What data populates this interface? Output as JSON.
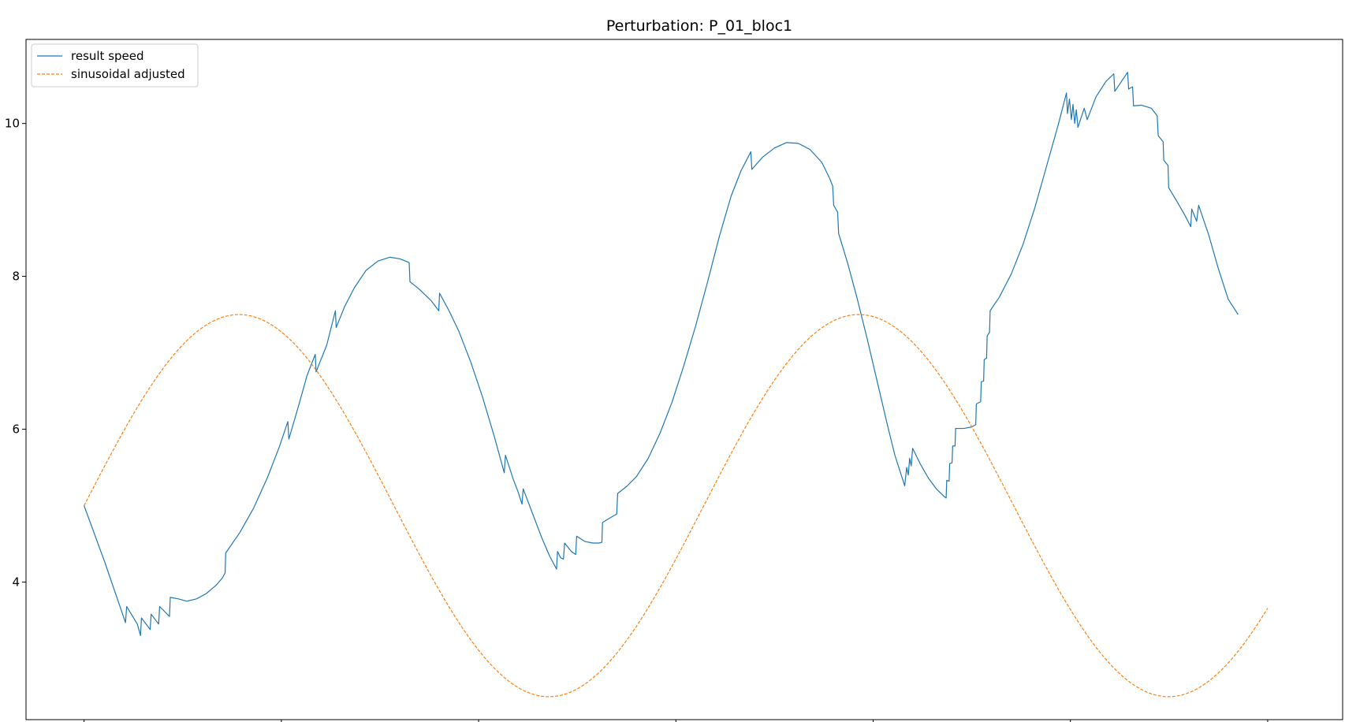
{
  "chart_data": {
    "type": "line",
    "title": "Perturbation: P_01_bloc1",
    "xlabel": "",
    "ylabel": "",
    "xlim": [
      -0.2943,
      6.3799
    ],
    "ylim": [
      2.2,
      11.1
    ],
    "xticks": [
      0,
      1,
      2,
      3,
      4,
      5,
      6
    ],
    "xtick_labels": [
      "",
      "",
      "",
      "",
      "",
      "",
      ""
    ],
    "yticks": [
      4,
      6,
      8,
      10
    ],
    "ytick_labels": [
      "4",
      "6",
      "8",
      "10"
    ],
    "grid": false,
    "legend_position": "top-left",
    "series": [
      {
        "name": "result speed",
        "color": "#1f77b4",
        "style": "solid",
        "points": [
          [
            0.0,
            5.0
          ],
          [
            0.105,
            4.26
          ],
          [
            0.21,
            3.47
          ],
          [
            0.216,
            3.68
          ],
          [
            0.27,
            3.45
          ],
          [
            0.286,
            3.3
          ],
          [
            0.291,
            3.53
          ],
          [
            0.335,
            3.38
          ],
          [
            0.34,
            3.58
          ],
          [
            0.378,
            3.45
          ],
          [
            0.383,
            3.68
          ],
          [
            0.433,
            3.55
          ],
          [
            0.437,
            3.8
          ],
          [
            0.478,
            3.78
          ],
          [
            0.52,
            3.75
          ],
          [
            0.57,
            3.78
          ],
          [
            0.62,
            3.85
          ],
          [
            0.67,
            3.96
          ],
          [
            0.7,
            4.05
          ],
          [
            0.715,
            4.12
          ],
          [
            0.718,
            4.38
          ],
          [
            0.79,
            4.65
          ],
          [
            0.86,
            4.97
          ],
          [
            0.93,
            5.37
          ],
          [
            0.99,
            5.77
          ],
          [
            1.033,
            6.1
          ],
          [
            1.038,
            5.87
          ],
          [
            1.09,
            6.33
          ],
          [
            1.13,
            6.7
          ],
          [
            1.172,
            6.98
          ],
          [
            1.176,
            6.75
          ],
          [
            1.23,
            7.1
          ],
          [
            1.274,
            7.55
          ],
          [
            1.278,
            7.33
          ],
          [
            1.32,
            7.6
          ],
          [
            1.37,
            7.85
          ],
          [
            1.43,
            8.08
          ],
          [
            1.49,
            8.2
          ],
          [
            1.55,
            8.25
          ],
          [
            1.6,
            8.23
          ],
          [
            1.648,
            8.18
          ],
          [
            1.652,
            7.93
          ],
          [
            1.7,
            7.83
          ],
          [
            1.76,
            7.68
          ],
          [
            1.798,
            7.55
          ],
          [
            1.802,
            7.78
          ],
          [
            1.85,
            7.55
          ],
          [
            1.9,
            7.28
          ],
          [
            1.96,
            6.88
          ],
          [
            2.02,
            6.42
          ],
          [
            2.08,
            5.9
          ],
          [
            2.13,
            5.43
          ],
          [
            2.136,
            5.66
          ],
          [
            2.175,
            5.35
          ],
          [
            2.2,
            5.18
          ],
          [
            2.22,
            5.02
          ],
          [
            2.226,
            5.22
          ],
          [
            2.27,
            4.92
          ],
          [
            2.32,
            4.58
          ],
          [
            2.36,
            4.34
          ],
          [
            2.395,
            4.17
          ],
          [
            2.4,
            4.4
          ],
          [
            2.415,
            4.32
          ],
          [
            2.43,
            4.3
          ],
          [
            2.436,
            4.51
          ],
          [
            2.47,
            4.4
          ],
          [
            2.492,
            4.36
          ],
          [
            2.497,
            4.6
          ],
          [
            2.54,
            4.53
          ],
          [
            2.58,
            4.51
          ],
          [
            2.61,
            4.51
          ],
          [
            2.625,
            4.52
          ],
          [
            2.628,
            4.78
          ],
          [
            2.66,
            4.83
          ],
          [
            2.7,
            4.89
          ],
          [
            2.705,
            5.16
          ],
          [
            2.75,
            5.25
          ],
          [
            2.8,
            5.38
          ],
          [
            2.86,
            5.62
          ],
          [
            2.92,
            5.95
          ],
          [
            2.98,
            6.35
          ],
          [
            3.04,
            6.83
          ],
          [
            3.1,
            7.35
          ],
          [
            3.16,
            7.92
          ],
          [
            3.22,
            8.52
          ],
          [
            3.28,
            9.05
          ],
          [
            3.33,
            9.38
          ],
          [
            3.38,
            9.63
          ],
          [
            3.385,
            9.4
          ],
          [
            3.44,
            9.56
          ],
          [
            3.5,
            9.68
          ],
          [
            3.56,
            9.75
          ],
          [
            3.62,
            9.74
          ],
          [
            3.68,
            9.66
          ],
          [
            3.74,
            9.49
          ],
          [
            3.78,
            9.28
          ],
          [
            3.795,
            9.18
          ],
          [
            3.8,
            8.93
          ],
          [
            3.82,
            8.84
          ],
          [
            3.825,
            8.56
          ],
          [
            3.87,
            8.18
          ],
          [
            3.92,
            7.7
          ],
          [
            3.97,
            7.18
          ],
          [
            4.02,
            6.63
          ],
          [
            4.07,
            6.08
          ],
          [
            4.11,
            5.66
          ],
          [
            4.145,
            5.38
          ],
          [
            4.16,
            5.26
          ],
          [
            4.17,
            5.5
          ],
          [
            4.178,
            5.4
          ],
          [
            4.185,
            5.62
          ],
          [
            4.193,
            5.52
          ],
          [
            4.2,
            5.75
          ],
          [
            4.24,
            5.54
          ],
          [
            4.28,
            5.36
          ],
          [
            4.32,
            5.22
          ],
          [
            4.36,
            5.12
          ],
          [
            4.37,
            5.1
          ],
          [
            4.373,
            5.33
          ],
          [
            4.385,
            5.32
          ],
          [
            4.388,
            5.55
          ],
          [
            4.4,
            5.56
          ],
          [
            4.403,
            5.78
          ],
          [
            4.415,
            5.78
          ],
          [
            4.418,
            6.01
          ],
          [
            4.46,
            6.01
          ],
          [
            4.5,
            6.03
          ],
          [
            4.52,
            6.06
          ],
          [
            4.523,
            6.33
          ],
          [
            4.545,
            6.36
          ],
          [
            4.548,
            6.62
          ],
          [
            4.56,
            6.63
          ],
          [
            4.563,
            6.91
          ],
          [
            4.575,
            6.93
          ],
          [
            4.578,
            7.22
          ],
          [
            4.59,
            7.27
          ],
          [
            4.593,
            7.55
          ],
          [
            4.64,
            7.73
          ],
          [
            4.7,
            8.03
          ],
          [
            4.76,
            8.42
          ],
          [
            4.82,
            8.9
          ],
          [
            4.88,
            9.45
          ],
          [
            4.94,
            10.0
          ],
          [
            4.98,
            10.4
          ],
          [
            4.985,
            10.13
          ],
          [
            4.995,
            10.32
          ],
          [
            5.005,
            10.05
          ],
          [
            5.013,
            10.25
          ],
          [
            5.022,
            10.0
          ],
          [
            5.03,
            10.18
          ],
          [
            5.038,
            9.95
          ],
          [
            5.07,
            10.2
          ],
          [
            5.085,
            10.05
          ],
          [
            5.13,
            10.35
          ],
          [
            5.18,
            10.55
          ],
          [
            5.22,
            10.65
          ],
          [
            5.225,
            10.42
          ],
          [
            5.29,
            10.67
          ],
          [
            5.295,
            10.45
          ],
          [
            5.315,
            10.48
          ],
          [
            5.32,
            10.23
          ],
          [
            5.36,
            10.24
          ],
          [
            5.41,
            10.2
          ],
          [
            5.44,
            10.1
          ],
          [
            5.445,
            9.84
          ],
          [
            5.47,
            9.76
          ],
          [
            5.473,
            9.52
          ],
          [
            5.495,
            9.45
          ],
          [
            5.498,
            9.16
          ],
          [
            5.54,
            8.98
          ],
          [
            5.58,
            8.8
          ],
          [
            5.61,
            8.65
          ],
          [
            5.615,
            8.88
          ],
          [
            5.64,
            8.72
          ],
          [
            5.65,
            8.93
          ],
          [
            5.7,
            8.55
          ],
          [
            5.75,
            8.1
          ],
          [
            5.8,
            7.7
          ],
          [
            5.85,
            7.5
          ]
        ]
      },
      {
        "name": "sinusoidal adjusted",
        "color": "#ff7f0e",
        "style": "dashed",
        "function": "5 + 2.5*sin(2*x)",
        "x_range": [
          0,
          6
        ],
        "samples": 601
      }
    ]
  }
}
